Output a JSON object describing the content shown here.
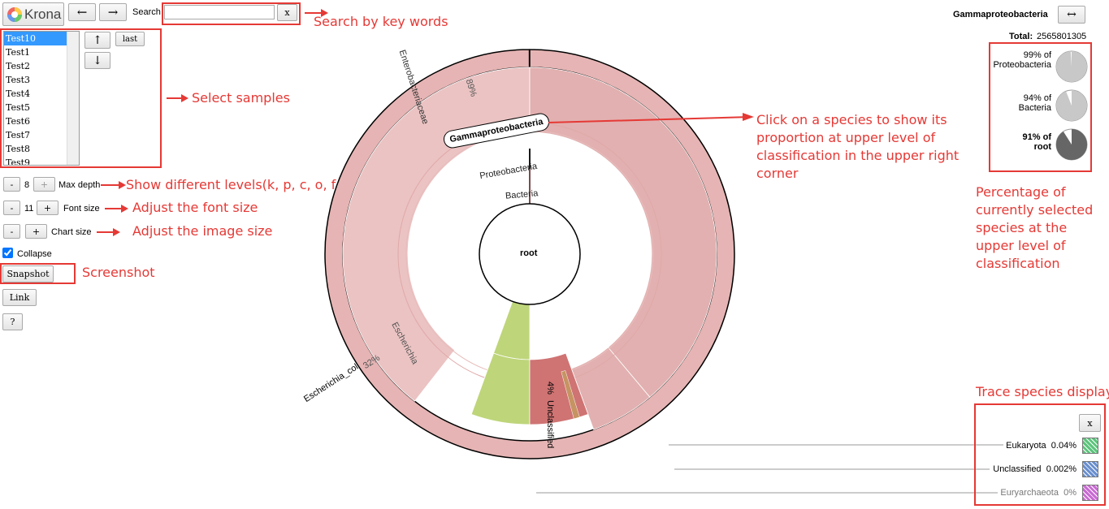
{
  "app": {
    "logo_text": "Krona"
  },
  "nav": {
    "back": "←",
    "forward": "→",
    "search_label": "Search",
    "search_clear": "x",
    "search_value": ""
  },
  "samples": {
    "items": [
      "Test10",
      "Test1",
      "Test2",
      "Test3",
      "Test4",
      "Test5",
      "Test6",
      "Test7",
      "Test8",
      "Test9"
    ],
    "selected": 0,
    "up": "↑",
    "down": "↓",
    "last": "last"
  },
  "controls": {
    "minus": "-",
    "plus": "+",
    "max_depth_value": "8",
    "max_depth_label": "Max depth",
    "font_size_value": "11",
    "font_size_label": "Font size",
    "chart_size_label": "Chart size",
    "collapse_label": "Collapse",
    "collapse_checked": true,
    "snapshot": "Snapshot",
    "link": "Link",
    "help": "?"
  },
  "chart": {
    "root": "root",
    "bacteria": "Bacteria",
    "proteobacteria": "Proteobacteria",
    "gamma": "Gammaproteobacteria",
    "entero": "Enterobacteriaceae",
    "entero_pct": "89%",
    "escherichia": "Escherichia",
    "ecoli": "Escherichia_coli",
    "ecoli_pct": "32%",
    "unclassified": "Unclassified",
    "unclassified_pct": "4%"
  },
  "details": {
    "title": "Gammaproteobacteria",
    "swap": "↔",
    "total_label": "Total:",
    "total_value": "2565801305",
    "ancestors": [
      {
        "pct": "99% of",
        "name": "Proteobacteria",
        "fraction": 0.99
      },
      {
        "pct": "94% of",
        "name": "Bacteria",
        "fraction": 0.94
      },
      {
        "pct": "91% of",
        "name": "root",
        "fraction": 0.91
      }
    ]
  },
  "trace": {
    "close": "x",
    "items": [
      {
        "name": "Eukaryota",
        "pct": "0.04%",
        "color": "#5cc47c"
      },
      {
        "name": "Unclassified",
        "pct": "0.002%",
        "color": "#6a8fcf"
      },
      {
        "name": "Euryarchaeota",
        "pct": "0%",
        "color": "#c86ad2"
      }
    ]
  },
  "annotations": {
    "search": "Search by key words",
    "samples": "Select samples",
    "levels": "Show different levels(k, p, c, o, f, g)",
    "font": "Adjust the font size",
    "image": "Adjust the image size",
    "screenshot": "Screenshot",
    "click": "Click on a species to show its proportion at upper level of classification in the upper right corner",
    "percentage": "Percentage of currently selected species at the upper level of classification",
    "trace": "Trace species display"
  },
  "colors": {
    "accent": "#e53935",
    "selection": "#3399ff",
    "wedge_inner": "#cc7070",
    "wedge_mid": "#e2b0b0",
    "wedge_outer": "#ebc3c3",
    "unclassified": "#bed57a"
  }
}
